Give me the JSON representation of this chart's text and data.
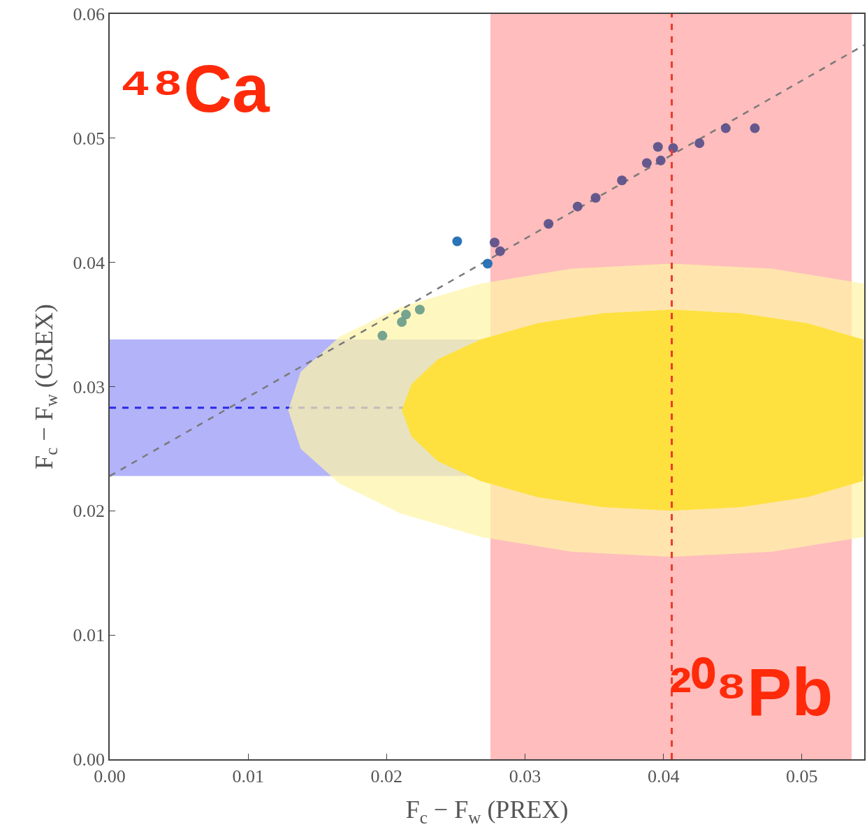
{
  "chart_data": {
    "type": "scatter",
    "xlabel": "F$_{c}$ − F$_{w}$ (PREX)",
    "ylabel": "F$_{c}$ − F$_{w}$ (CREX)",
    "xlim": [
      0,
      0.0545
    ],
    "ylim": [
      0,
      0.06
    ],
    "xticks": [
      {
        "value": 0,
        "label": "0.00"
      },
      {
        "value": 0.01,
        "label": "0.01"
      },
      {
        "value": 0.02,
        "label": "0.02"
      },
      {
        "value": 0.03,
        "label": "0.03"
      },
      {
        "value": 0.04,
        "label": "0.04"
      },
      {
        "value": 0.05,
        "label": "0.05"
      }
    ],
    "yticks": [
      {
        "value": 0,
        "label": "0.00"
      },
      {
        "value": 0.01,
        "label": "0.01"
      },
      {
        "value": 0.02,
        "label": "0.02"
      },
      {
        "value": 0.03,
        "label": "0.03"
      },
      {
        "value": 0.04,
        "label": "0.04"
      },
      {
        "value": 0.05,
        "label": "0.05"
      },
      {
        "value": 0.06,
        "label": "0.06"
      }
    ],
    "grid": false,
    "marker": "circle",
    "bands": [
      {
        "axis": "y",
        "from": 0.0228,
        "to": 0.0338,
        "color": "#b3b3fa"
      },
      {
        "axis": "x",
        "from": 0.0275,
        "to": 0.0536,
        "color": "#ffbdbd"
      }
    ],
    "ref_lines": [
      {
        "axis": "y",
        "value": 0.0283,
        "color": "#2a2ae8",
        "line_style": "dashed"
      },
      {
        "axis": "x",
        "value": 0.0406,
        "color": "#f03a2a",
        "line_style": "dashed"
      }
    ],
    "annotations": [
      "⁴⁸Ca",
      "²⁰⁸Pb"
    ],
    "series": [
      {
        "type": "area",
        "color": "#fff5a8",
        "marker": "none",
        "x": [
          0.0129,
          0.0138,
          0.0166,
          0.021,
          0.0268,
          0.0334,
          0.0406,
          0.0478,
          0.0545,
          0.0545,
          0.0478,
          0.0406,
          0.0334,
          0.0268,
          0.021,
          0.0166,
          0.0138,
          0.0129
        ],
        "values": [
          0.0281,
          0.0312,
          0.034,
          0.0364,
          0.0383,
          0.0395,
          0.0399,
          0.0395,
          0.0383,
          0.0179,
          0.0167,
          0.0163,
          0.0167,
          0.0179,
          0.0198,
          0.0222,
          0.025,
          0.0281
        ]
      },
      {
        "type": "area",
        "color": "#fee13f",
        "marker": "none",
        "x": [
          0.0211,
          0.0218,
          0.0237,
          0.0268,
          0.0309,
          0.0356,
          0.0406,
          0.0456,
          0.0504,
          0.0544,
          0.0544,
          0.0504,
          0.0456,
          0.0406,
          0.0356,
          0.0309,
          0.0268,
          0.0237,
          0.0218,
          0.0211
        ],
        "values": [
          0.0281,
          0.0302,
          0.0322,
          0.0338,
          0.0351,
          0.0359,
          0.0362,
          0.0359,
          0.0351,
          0.0338,
          0.0224,
          0.0211,
          0.0203,
          0.02,
          0.0203,
          0.0211,
          0.0224,
          0.024,
          0.026,
          0.0281
        ]
      },
      {
        "type": "line",
        "color": "#7a7a7a",
        "line_style": "dashed",
        "marker": "none",
        "x": [
          0,
          0.0545
        ],
        "values": [
          0.0228,
          0.0575
        ]
      },
      {
        "color": "#1f6db3",
        "x": [
          0.0251,
          0.0273
        ],
        "values": [
          0.0417,
          0.0399
        ]
      },
      {
        "color": "#6f9f8c",
        "x": [
          0.0197,
          0.0211,
          0.0214,
          0.0224
        ],
        "values": [
          0.0341,
          0.0352,
          0.0358,
          0.0362
        ]
      },
      {
        "color": "#5d528a",
        "x": [
          0.0278,
          0.0282,
          0.0317,
          0.0338,
          0.0351,
          0.037,
          0.0388,
          0.0398,
          0.0396,
          0.0407,
          0.0426,
          0.0445,
          0.0466
        ],
        "values": [
          0.0416,
          0.0409,
          0.0431,
          0.0445,
          0.0452,
          0.0466,
          0.048,
          0.0482,
          0.0493,
          0.0492,
          0.0496,
          0.0508,
          0.0508
        ]
      }
    ]
  }
}
